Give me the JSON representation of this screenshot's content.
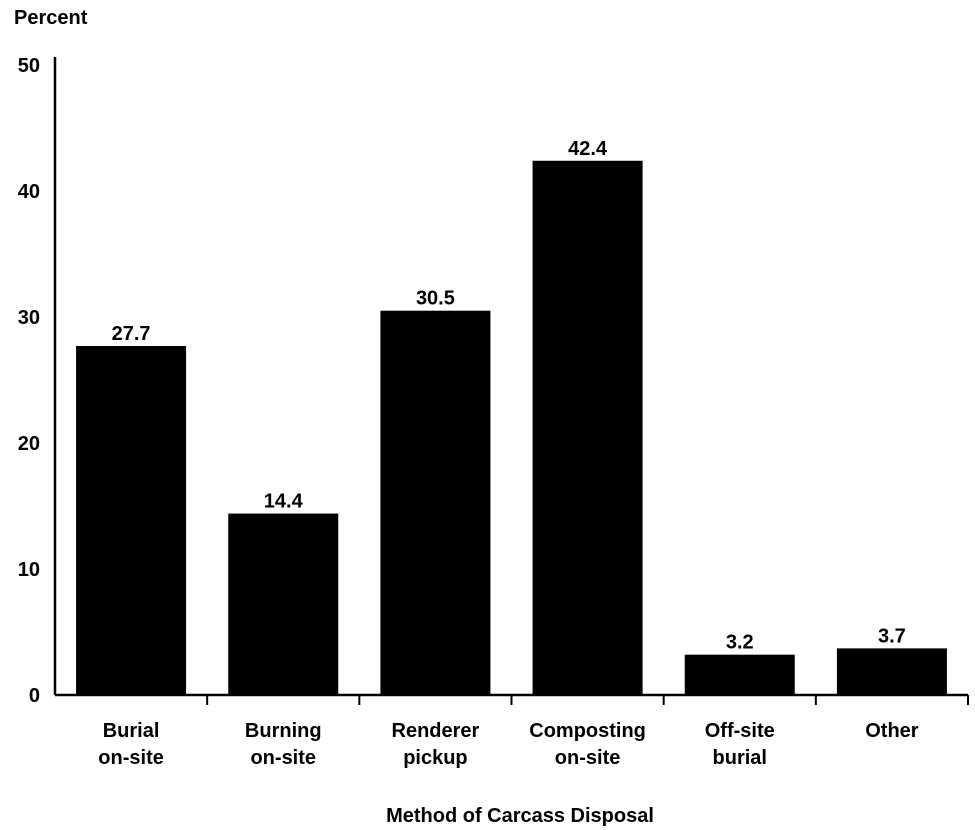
{
  "chart_data": {
    "type": "bar",
    "title": "",
    "ylabel": "Percent",
    "xlabel": "Method of Carcass Disposal",
    "ylim": [
      0,
      50
    ],
    "yticks": [
      0,
      10,
      20,
      30,
      40,
      50
    ],
    "grid": false,
    "legend": "none",
    "bar_color": "#000000",
    "categories": [
      [
        "Burial",
        "on-site"
      ],
      [
        "Burning",
        "on-site"
      ],
      [
        "Renderer",
        "pickup"
      ],
      [
        "Composting",
        "on-site"
      ],
      [
        "Off-site",
        "burial"
      ],
      [
        "Other"
      ]
    ],
    "values": [
      27.7,
      14.4,
      30.5,
      42.4,
      3.2,
      3.7
    ],
    "value_labels": [
      "27.7",
      "14.4",
      "30.5",
      "42.4",
      "3.2",
      "3.7"
    ]
  }
}
